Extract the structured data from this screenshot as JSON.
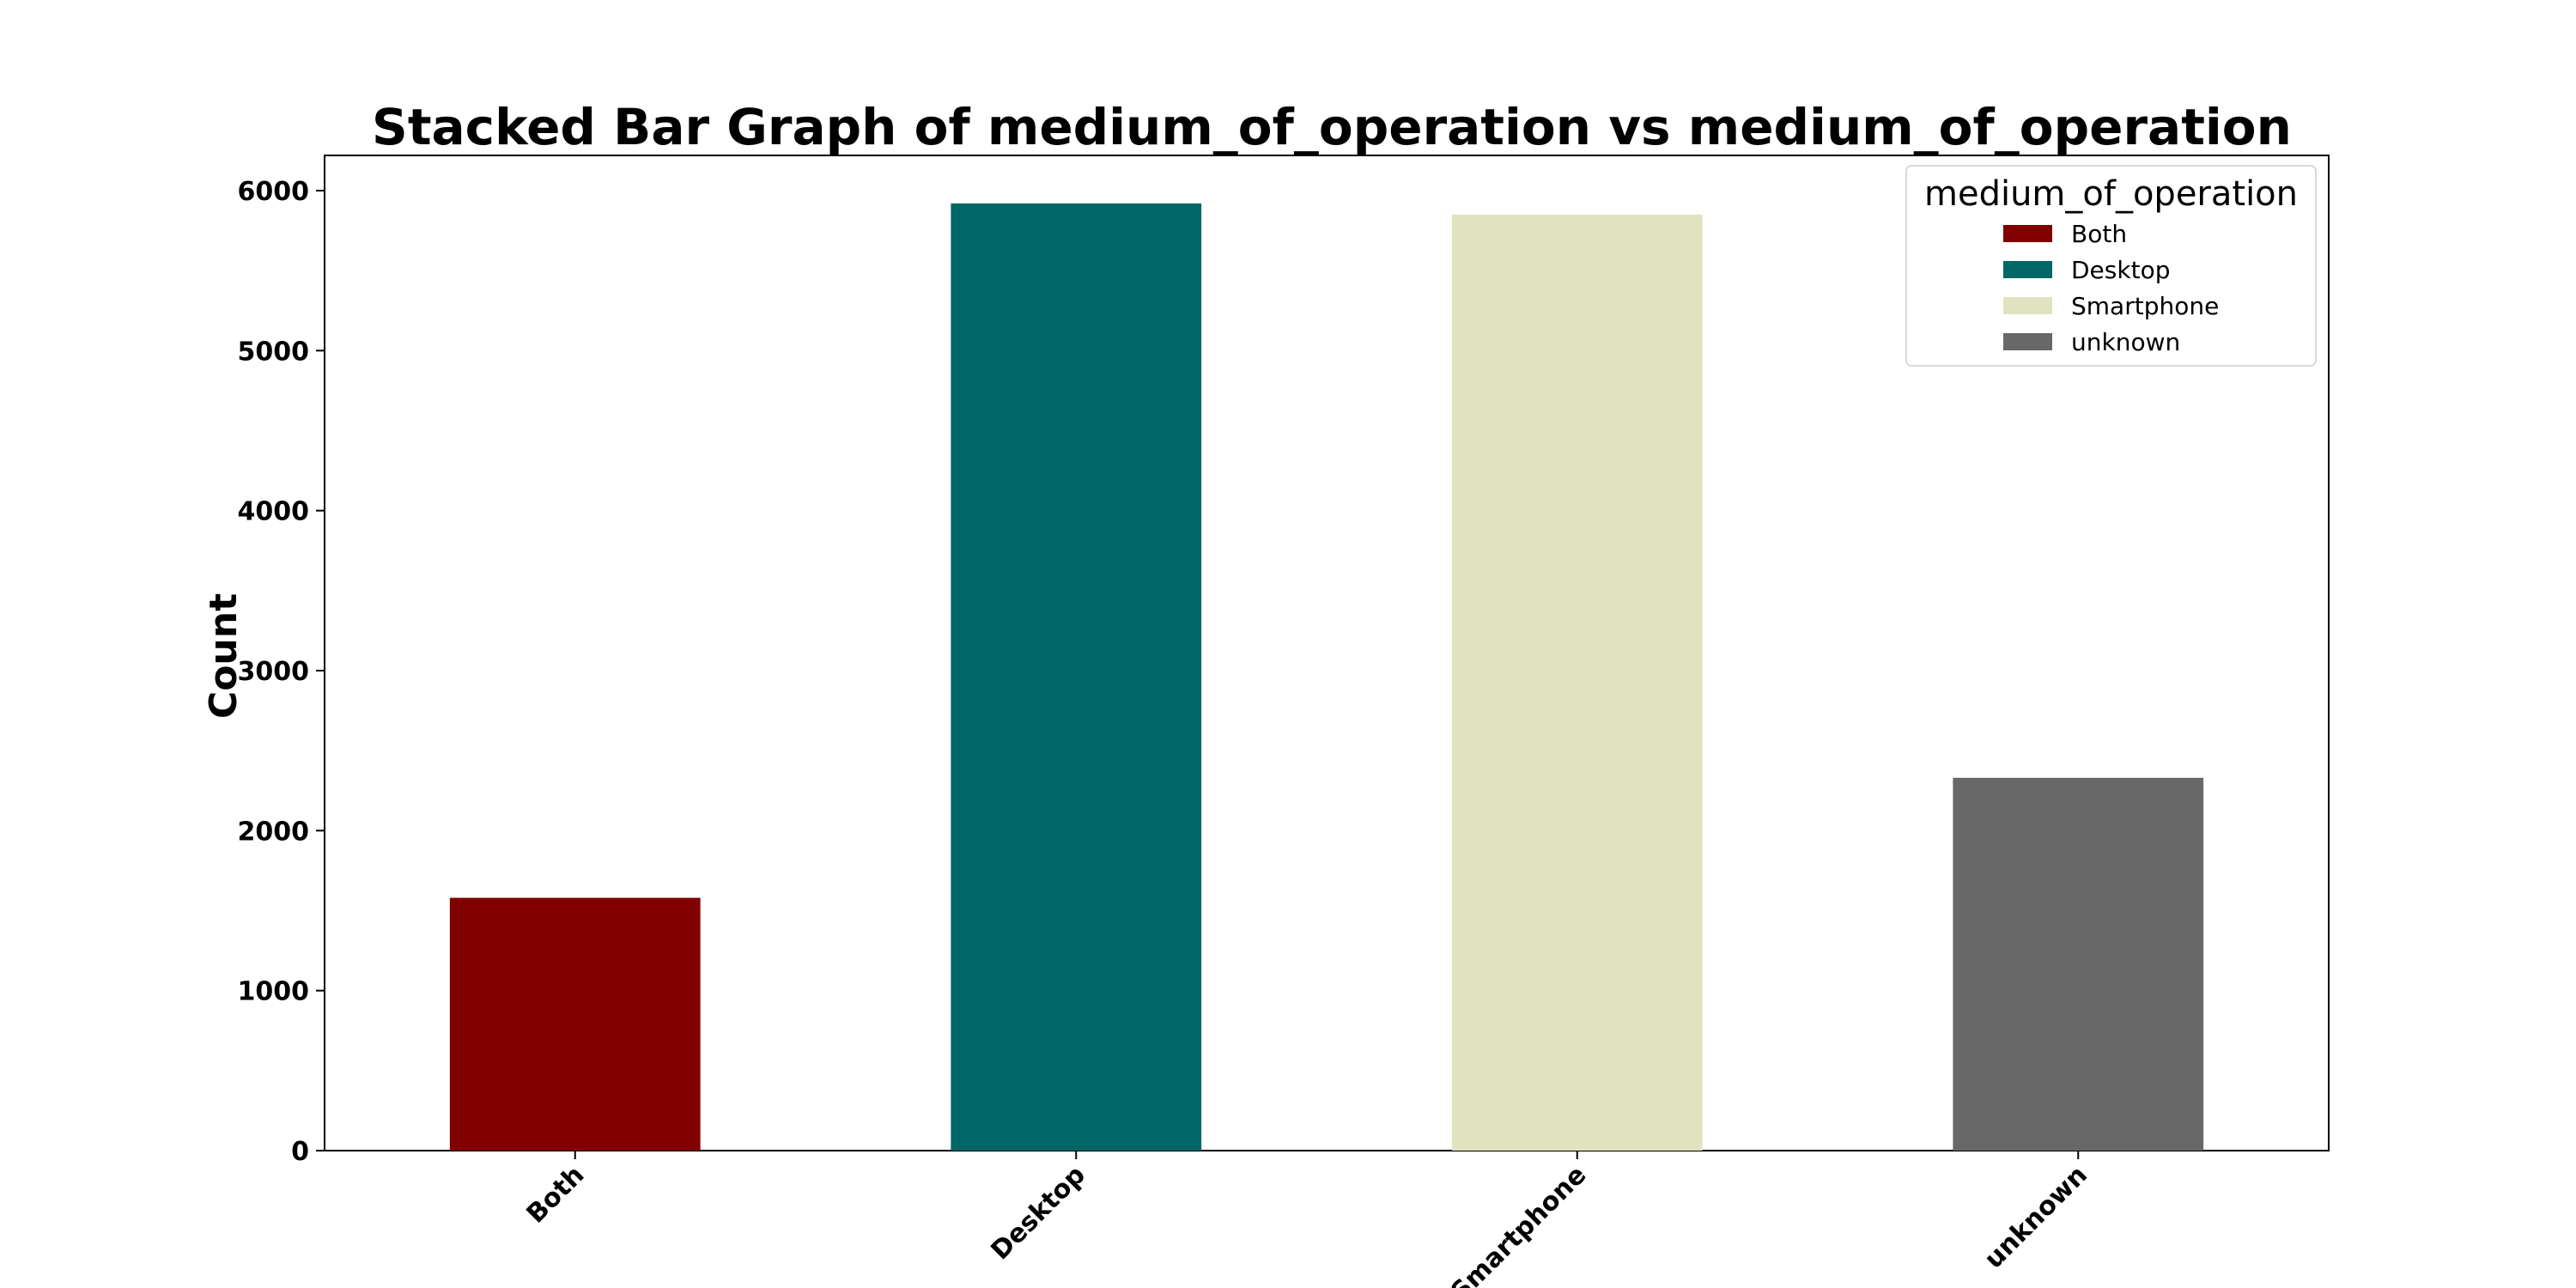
{
  "chart_data": {
    "type": "bar",
    "title": "Stacked Bar Graph of medium_of_operation vs medium_of_operation",
    "xlabel": "",
    "ylabel": "Count",
    "categories": [
      "Both",
      "Desktop",
      "Smartphone",
      "unknown"
    ],
    "series": [
      {
        "name": "Both",
        "color": "#800000",
        "values": [
          1580,
          0,
          0,
          0
        ]
      },
      {
        "name": "Desktop",
        "color": "#006666",
        "values": [
          0,
          5920,
          0,
          0
        ]
      },
      {
        "name": "Smartphone",
        "color": "#e1e2c0",
        "values": [
          0,
          0,
          5850,
          0
        ]
      },
      {
        "name": "unknown",
        "color": "#686868",
        "values": [
          0,
          0,
          0,
          2330
        ]
      }
    ],
    "ylim": [
      0,
      6220
    ],
    "yticks": [
      0,
      1000,
      2000,
      3000,
      4000,
      5000,
      6000
    ],
    "grid": false,
    "legend": {
      "title": "medium_of_operation",
      "position": "top-right"
    }
  }
}
